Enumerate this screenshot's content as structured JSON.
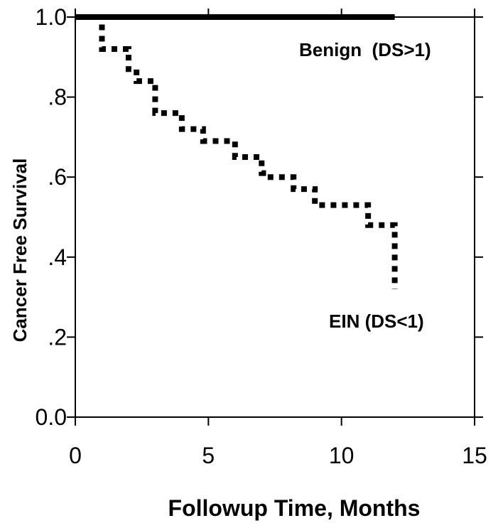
{
  "chart_data": {
    "type": "line",
    "title": "",
    "xlabel": "Followup Time, Months",
    "ylabel": "Cancer Free Survival",
    "xlim": [
      0,
      15
    ],
    "ylim": [
      0,
      1
    ],
    "x_ticks": [
      0,
      5,
      10,
      15
    ],
    "x_tick_labels": [
      "0",
      "5",
      "10",
      "15"
    ],
    "y_ticks": [
      0,
      0.2,
      0.4,
      0.6,
      0.8,
      1.0
    ],
    "y_tick_labels": [
      "0.0",
      ".2",
      ".4",
      ".6",
      ".8",
      "1.0"
    ],
    "grid": false,
    "step": true,
    "series": [
      {
        "name": "Benign  (DS>1)",
        "style": "solid",
        "x": [
          0,
          12
        ],
        "y": [
          1.0,
          1.0
        ]
      },
      {
        "name": "EIN (DS<1)",
        "style": "dotted",
        "x": [
          0,
          1.0,
          2.0,
          2.3,
          3.0,
          4.0,
          4.8,
          6.0,
          7.0,
          7.2,
          8.2,
          9.0,
          11.0,
          12.0
        ],
        "y": [
          1.0,
          0.92,
          0.87,
          0.84,
          0.76,
          0.72,
          0.69,
          0.65,
          0.61,
          0.6,
          0.57,
          0.53,
          0.48,
          0.32
        ]
      }
    ],
    "annotations": [
      {
        "text": "Benign  (DS>1)"
      },
      {
        "text": "EIN (DS<1)"
      }
    ]
  }
}
